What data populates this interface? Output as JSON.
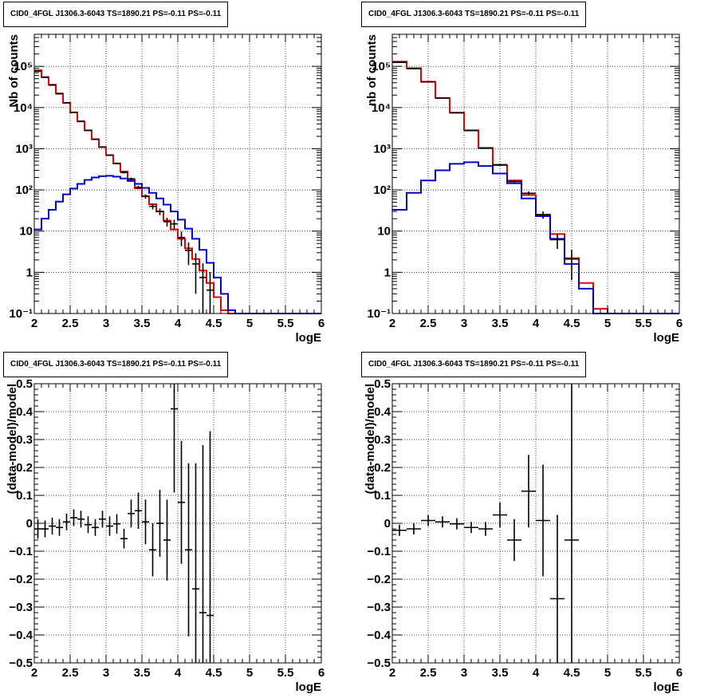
{
  "chart_data": [
    {
      "type": "histogram",
      "title": "CID0_4FGL J1306.3-6043 TS=1890.21 PS=-0.11 PS=-0.11",
      "xlabel": "logE",
      "ylabel": "Nb of counts",
      "yscale": "log",
      "xlim": [
        2,
        6
      ],
      "ylim": [
        0.1,
        600000
      ],
      "grid": true,
      "x_ticks": [
        "2",
        "2.5",
        "3",
        "3.5",
        "4",
        "4.5",
        "5",
        "5.5",
        "6"
      ],
      "y_ticks": [
        {
          "v": 0.1,
          "label": "10⁻¹"
        },
        {
          "v": 1,
          "label": "1"
        },
        {
          "v": 10,
          "label": "10"
        },
        {
          "v": 100,
          "label": "10²"
        },
        {
          "v": 1000,
          "label": "10³"
        },
        {
          "v": 10000,
          "label": "10⁴"
        },
        {
          "v": 100000,
          "label": "10⁵"
        }
      ],
      "bin_width": 0.1,
      "x_start": 2.0,
      "series": [
        {
          "color": "#e00000",
          "values": [
            80000,
            55000,
            36000,
            22000,
            13000,
            7600,
            4600,
            2800,
            1700,
            1100,
            700,
            440,
            280,
            180,
            110,
            70,
            45,
            30,
            18,
            11,
            6.5,
            3.8,
            2.1,
            1.1,
            0.55,
            0.25,
            0.12,
            0.1,
            0.1,
            0.1,
            0.1,
            0.1,
            0.1,
            0.1,
            0.1,
            0.1,
            0.1,
            0.1,
            0.1,
            0.1
          ]
        },
        {
          "color": "#0000d0",
          "values": [
            11,
            20,
            33,
            52,
            78,
            108,
            140,
            175,
            200,
            215,
            220,
            210,
            190,
            165,
            140,
            112,
            85,
            62,
            44,
            30,
            19,
            11.5,
            6.5,
            3.5,
            1.7,
            0.75,
            0.3,
            0.12,
            0.1,
            0.1,
            0.1,
            0.1,
            0.1,
            0.1,
            0.1,
            0.1,
            0.1,
            0.1,
            0.1,
            0.1
          ]
        }
      ],
      "data_points": [
        {
          "x": 2.05,
          "y": 76000,
          "err": 300
        },
        {
          "x": 2.15,
          "y": 54000,
          "err": 240
        },
        {
          "x": 2.25,
          "y": 35000,
          "err": 190
        },
        {
          "x": 2.35,
          "y": 21500,
          "err": 150
        },
        {
          "x": 2.45,
          "y": 13000,
          "err": 115
        },
        {
          "x": 2.55,
          "y": 7700,
          "err": 90
        },
        {
          "x": 2.65,
          "y": 4650,
          "err": 70
        },
        {
          "x": 2.75,
          "y": 2780,
          "err": 55
        },
        {
          "x": 2.85,
          "y": 1690,
          "err": 42
        },
        {
          "x": 2.95,
          "y": 1100,
          "err": 33
        },
        {
          "x": 3.05,
          "y": 700,
          "err": 27
        },
        {
          "x": 3.15,
          "y": 440,
          "err": 21
        },
        {
          "x": 3.25,
          "y": 265,
          "err": 16
        },
        {
          "x": 3.35,
          "y": 186,
          "err": 14
        },
        {
          "x": 3.45,
          "y": 115,
          "err": 11
        },
        {
          "x": 3.55,
          "y": 70,
          "err": 8.5
        },
        {
          "x": 3.65,
          "y": 40,
          "err": 6.5
        },
        {
          "x": 3.75,
          "y": 30,
          "err": 5.5
        },
        {
          "x": 3.85,
          "y": 17,
          "err": 4.1
        },
        {
          "x": 3.95,
          "y": 15,
          "err": 3.9
        },
        {
          "x": 4.05,
          "y": 7,
          "err": 2.7
        },
        {
          "x": 4.15,
          "y": 3.4,
          "err": 1.9
        },
        {
          "x": 4.25,
          "y": 1.6,
          "err": 1.3
        },
        {
          "x": 4.35,
          "y": 0.75,
          "err": 0.9
        },
        {
          "x": 4.45,
          "y": 0.37,
          "err": 0.65
        }
      ]
    },
    {
      "type": "histogram",
      "title": "CID0_4FGL J1306.3-6043 TS=1890.21 PS=-0.11 PS=-0.11",
      "xlabel": "logE",
      "ylabel": "nb of counts",
      "yscale": "log",
      "xlim": [
        2,
        6
      ],
      "ylim": [
        0.1,
        600000
      ],
      "grid": true,
      "x_ticks": [
        "2",
        "2.5",
        "3",
        "3.5",
        "4",
        "4.5",
        "5",
        "5.5",
        "6"
      ],
      "y_ticks": [
        {
          "v": 0.1,
          "label": "10⁻¹"
        },
        {
          "v": 1,
          "label": "1"
        },
        {
          "v": 10,
          "label": "10"
        },
        {
          "v": 100,
          "label": "10²"
        },
        {
          "v": 1000,
          "label": "10³"
        },
        {
          "v": 10000,
          "label": "10⁴"
        },
        {
          "v": 100000,
          "label": "10⁵"
        }
      ],
      "bin_width": 0.2,
      "x_start": 2.0,
      "series": [
        {
          "color": "#e00000",
          "values": [
            130000,
            90000,
            42000,
            17000,
            7500,
            2800,
            1050,
            400,
            170,
            75,
            25,
            8.5,
            2.2,
            0.55,
            0.13,
            0.1,
            0.1,
            0.1,
            0.1,
            0.1
          ]
        },
        {
          "color": "#0000d0",
          "values": [
            33,
            85,
            170,
            300,
            430,
            470,
            380,
            250,
            145,
            62,
            23,
            6.5,
            1.6,
            0.4,
            0.1,
            0.1,
            0.1,
            0.1,
            0.1,
            0.1
          ]
        }
      ],
      "data_points": [
        {
          "x": 2.1,
          "y": 125000,
          "err": 400
        },
        {
          "x": 2.3,
          "y": 88000,
          "err": 300
        },
        {
          "x": 2.5,
          "y": 42500,
          "err": 210
        },
        {
          "x": 2.7,
          "y": 17100,
          "err": 130
        },
        {
          "x": 2.9,
          "y": 7450,
          "err": 86
        },
        {
          "x": 3.1,
          "y": 2760,
          "err": 53
        },
        {
          "x": 3.3,
          "y": 1030,
          "err": 32
        },
        {
          "x": 3.5,
          "y": 410,
          "err": 20
        },
        {
          "x": 3.7,
          "y": 160,
          "err": 13
        },
        {
          "x": 3.9,
          "y": 83,
          "err": 9.1
        },
        {
          "x": 4.1,
          "y": 25,
          "err": 5
        },
        {
          "x": 4.3,
          "y": 6.2,
          "err": 2.5
        },
        {
          "x": 4.5,
          "y": 2.1,
          "err": 1.45
        }
      ]
    },
    {
      "type": "scatter",
      "title": "CID0_4FGL J1306.3-6043 TS=1890.21 PS=-0.11 PS=-0.11",
      "xlabel": "logE",
      "ylabel": "(data-model)/model",
      "xlim": [
        2,
        6
      ],
      "ylim": [
        -0.5,
        0.5
      ],
      "grid": true,
      "x_ticks": [
        "2",
        "2.5",
        "3",
        "3.5",
        "4",
        "4.5",
        "5",
        "5.5",
        "6"
      ],
      "y_ticks": [
        {
          "v": -0.5,
          "label": "−0.5"
        },
        {
          "v": -0.4,
          "label": "−0.4"
        },
        {
          "v": -0.3,
          "label": "−0.3"
        },
        {
          "v": -0.2,
          "label": "−0.2"
        },
        {
          "v": -0.1,
          "label": "−0.1"
        },
        {
          "v": 0,
          "label": "0"
        },
        {
          "v": 0.1,
          "label": "0.1"
        },
        {
          "v": 0.2,
          "label": "0.2"
        },
        {
          "v": 0.3,
          "label": "0.3"
        },
        {
          "v": 0.4,
          "label": "0.4"
        },
        {
          "v": 0.5,
          "label": "0.5"
        }
      ],
      "x_halfwidth": 0.05,
      "points": [
        {
          "x": 2.05,
          "y": -0.02,
          "err": 0.035
        },
        {
          "x": 2.15,
          "y": -0.02,
          "err": 0.03
        },
        {
          "x": 2.25,
          "y": -0.01,
          "err": 0.03
        },
        {
          "x": 2.35,
          "y": -0.015,
          "err": 0.03
        },
        {
          "x": 2.45,
          "y": 0.005,
          "err": 0.03
        },
        {
          "x": 2.55,
          "y": 0.02,
          "err": 0.03
        },
        {
          "x": 2.65,
          "y": 0.015,
          "err": 0.03
        },
        {
          "x": 2.75,
          "y": -0.005,
          "err": 0.03
        },
        {
          "x": 2.85,
          "y": -0.015,
          "err": 0.03
        },
        {
          "x": 2.95,
          "y": 0.015,
          "err": 0.03
        },
        {
          "x": 3.05,
          "y": -0.01,
          "err": 0.035
        },
        {
          "x": 3.15,
          "y": -0.002,
          "err": 0.035
        },
        {
          "x": 3.25,
          "y": -0.055,
          "err": 0.035
        },
        {
          "x": 3.35,
          "y": 0.035,
          "err": 0.05
        },
        {
          "x": 3.45,
          "y": 0.045,
          "err": 0.065
        },
        {
          "x": 3.55,
          "y": 0.005,
          "err": 0.08
        },
        {
          "x": 3.65,
          "y": -0.095,
          "err": 0.095
        },
        {
          "x": 3.75,
          "y": 0.0,
          "err": 0.12
        },
        {
          "x": 3.85,
          "y": -0.06,
          "err": 0.145
        },
        {
          "x": 3.95,
          "y": 0.41,
          "err": 0.3
        },
        {
          "x": 4.05,
          "y": 0.075,
          "err": 0.22
        },
        {
          "x": 4.15,
          "y": -0.095,
          "err": 0.31
        },
        {
          "x": 4.25,
          "y": -0.235,
          "err": 0.45
        },
        {
          "x": 4.35,
          "y": -0.32,
          "err": 0.6
        },
        {
          "x": 4.45,
          "y": -0.33,
          "err": 0.66
        }
      ]
    },
    {
      "type": "scatter",
      "title": "CID0_4FGL J1306.3-6043 TS=1890.21 PS=-0.11 PS=-0.11",
      "xlabel": "logE",
      "ylabel": "(data-model)/model",
      "xlim": [
        2,
        6
      ],
      "ylim": [
        -0.5,
        0.5
      ],
      "grid": true,
      "x_ticks": [
        "2",
        "2.5",
        "3",
        "3.5",
        "4",
        "4.5",
        "5",
        "5.5",
        "6"
      ],
      "y_ticks": [
        {
          "v": -0.5,
          "label": "−0.5"
        },
        {
          "v": -0.4,
          "label": "−0.4"
        },
        {
          "v": -0.3,
          "label": "−0.3"
        },
        {
          "v": -0.2,
          "label": "−0.2"
        },
        {
          "v": -0.1,
          "label": "−0.1"
        },
        {
          "v": 0,
          "label": "0"
        },
        {
          "v": 0.1,
          "label": "0.1"
        },
        {
          "v": 0.2,
          "label": "0.2"
        },
        {
          "v": 0.3,
          "label": "0.3"
        },
        {
          "v": 0.4,
          "label": "0.4"
        },
        {
          "v": 0.5,
          "label": "0.5"
        }
      ],
      "x_halfwidth": 0.1,
      "points": [
        {
          "x": 2.1,
          "y": -0.025,
          "err": 0.02
        },
        {
          "x": 2.3,
          "y": -0.02,
          "err": 0.02
        },
        {
          "x": 2.5,
          "y": 0.01,
          "err": 0.02
        },
        {
          "x": 2.7,
          "y": 0.005,
          "err": 0.02
        },
        {
          "x": 2.9,
          "y": -0.002,
          "err": 0.02
        },
        {
          "x": 3.1,
          "y": -0.015,
          "err": 0.02
        },
        {
          "x": 3.3,
          "y": -0.02,
          "err": 0.025
        },
        {
          "x": 3.5,
          "y": 0.03,
          "err": 0.045
        },
        {
          "x": 3.7,
          "y": -0.06,
          "err": 0.075
        },
        {
          "x": 3.9,
          "y": 0.115,
          "err": 0.13
        },
        {
          "x": 4.1,
          "y": 0.01,
          "err": 0.2
        },
        {
          "x": 4.3,
          "y": -0.27,
          "err": 0.3
        },
        {
          "x": 4.5,
          "y": -0.06,
          "err": 0.62
        }
      ]
    }
  ]
}
